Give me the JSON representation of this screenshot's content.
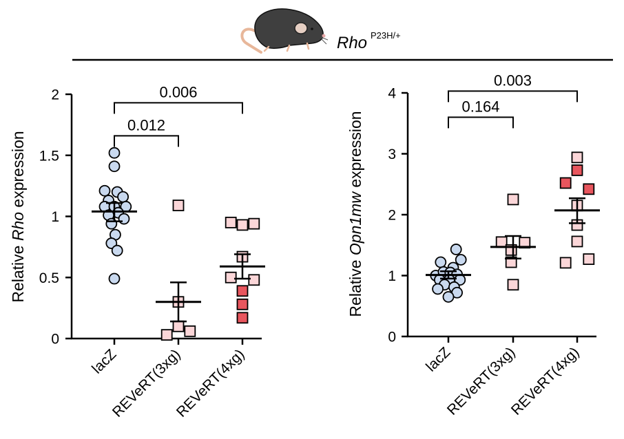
{
  "header": {
    "gene": "Rho",
    "genotype": "P23H/+",
    "mouse_icon": "mouse-icon"
  },
  "colors": {
    "lacz": "#c9d9ef",
    "light_pink": "#fbd6d8",
    "dark_red": "#e8565e",
    "stroke": "#000000"
  },
  "chart_data": [
    {
      "type": "scatter",
      "id": "rho",
      "title": "",
      "ylabel_prefix": "Relative ",
      "ylabel_gene": "Rho",
      "ylabel_suffix": " expression",
      "ylim": [
        0,
        2
      ],
      "yticks": [
        0,
        0.5,
        1,
        1.5,
        2
      ],
      "ytick_labels": [
        "0",
        "0.5",
        "1",
        "1.5",
        "2"
      ],
      "categories": [
        "lacZ",
        "REVeRT(3xg)",
        "REVeRT(4xg)"
      ],
      "groups": [
        {
          "name": "lacZ",
          "marker": "circle",
          "mean": 1.04,
          "sem_low": 0.96,
          "sem_high": 1.11,
          "points": [
            {
              "dx": 0,
              "y": 1.52,
              "c": "lacz"
            },
            {
              "dx": 0,
              "y": 1.41,
              "c": "lacz"
            },
            {
              "dx": -1,
              "y": 1.21,
              "c": "lacz"
            },
            {
              "dx": 0.3,
              "y": 1.2,
              "c": "lacz"
            },
            {
              "dx": 0.9,
              "y": 1.16,
              "c": "lacz"
            },
            {
              "dx": -0.6,
              "y": 1.13,
              "c": "lacz"
            },
            {
              "dx": -1,
              "y": 1.08,
              "c": "lacz"
            },
            {
              "dx": 0,
              "y": 1.08,
              "c": "lacz"
            },
            {
              "dx": 1.2,
              "y": 1.08,
              "c": "lacz"
            },
            {
              "dx": 0.4,
              "y": 1.03,
              "c": "lacz"
            },
            {
              "dx": -0.6,
              "y": 1.01,
              "c": "lacz"
            },
            {
              "dx": 1,
              "y": 0.98,
              "c": "lacz"
            },
            {
              "dx": -0.3,
              "y": 0.94,
              "c": "lacz"
            },
            {
              "dx": 0.1,
              "y": 0.85,
              "c": "lacz"
            },
            {
              "dx": -0.3,
              "y": 0.78,
              "c": "lacz"
            },
            {
              "dx": 0.3,
              "y": 0.72,
              "c": "lacz"
            },
            {
              "dx": 0,
              "y": 0.49,
              "c": "lacz"
            }
          ]
        },
        {
          "name": "REVeRT(3xg)",
          "marker": "square",
          "mean": 0.3,
          "sem_low": 0.14,
          "sem_high": 0.46,
          "points": [
            {
              "dx": 0,
              "y": 1.09,
              "c": "light_pink"
            },
            {
              "dx": 0,
              "y": 0.3,
              "c": "light_pink"
            },
            {
              "dx": 0,
              "y": 0.1,
              "c": "light_pink"
            },
            {
              "dx": -1.2,
              "y": 0.03,
              "c": "light_pink"
            },
            {
              "dx": 1.2,
              "y": 0.06,
              "c": "light_pink"
            }
          ]
        },
        {
          "name": "REVeRT(4xg)",
          "marker": "square",
          "mean": 0.59,
          "sem_low": 0.49,
          "sem_high": 0.69,
          "points": [
            {
              "dx": -1.2,
              "y": 0.95,
              "c": "light_pink"
            },
            {
              "dx": 0,
              "y": 0.93,
              "c": "light_pink"
            },
            {
              "dx": 1.2,
              "y": 0.94,
              "c": "light_pink"
            },
            {
              "dx": 0,
              "y": 0.67,
              "c": "light_pink"
            },
            {
              "dx": -1.2,
              "y": 0.5,
              "c": "light_pink"
            },
            {
              "dx": 1.2,
              "y": 0.48,
              "c": "light_pink"
            },
            {
              "dx": 0,
              "y": 0.39,
              "c": "dark_red"
            },
            {
              "dx": 0,
              "y": 0.28,
              "c": "dark_red"
            },
            {
              "dx": 0,
              "y": 0.17,
              "c": "dark_red"
            }
          ]
        }
      ],
      "comparisons": [
        {
          "from": 0,
          "to": 2,
          "label": "0.006",
          "level": 1.93
        },
        {
          "from": 0,
          "to": 1,
          "label": "0.012",
          "level": 1.66
        }
      ]
    },
    {
      "type": "scatter",
      "id": "opn1mw",
      "title": "",
      "ylabel_prefix": "Relative ",
      "ylabel_gene": "Opn1mw",
      "ylabel_suffix": " expression",
      "ylim": [
        0,
        4
      ],
      "yticks": [
        0,
        1,
        2,
        3,
        4
      ],
      "ytick_labels": [
        "0",
        "1",
        "2",
        "3",
        "4"
      ],
      "categories": [
        "lacZ",
        "REVeRT(3xg)",
        "REVeRT(4xg)"
      ],
      "groups": [
        {
          "name": "lacZ",
          "marker": "circle",
          "mean": 1.01,
          "sem_low": 0.95,
          "sem_high": 1.07,
          "points": [
            {
              "dx": 0.8,
              "y": 1.43,
              "c": "lacz"
            },
            {
              "dx": -0.8,
              "y": 1.22,
              "c": "lacz"
            },
            {
              "dx": 1.3,
              "y": 1.26,
              "c": "lacz"
            },
            {
              "dx": 0.5,
              "y": 1.13,
              "c": "lacz"
            },
            {
              "dx": -1.3,
              "y": 1.0,
              "c": "lacz"
            },
            {
              "dx": -0.5,
              "y": 1.06,
              "c": "lacz"
            },
            {
              "dx": 0.2,
              "y": 1.05,
              "c": "lacz"
            },
            {
              "dx": 0.9,
              "y": 1.02,
              "c": "lacz"
            },
            {
              "dx": -0.9,
              "y": 0.93,
              "c": "lacz"
            },
            {
              "dx": 0.1,
              "y": 0.93,
              "c": "lacz"
            },
            {
              "dx": 1.2,
              "y": 0.93,
              "c": "lacz"
            },
            {
              "dx": -0.4,
              "y": 0.85,
              "c": "lacz"
            },
            {
              "dx": 0.6,
              "y": 0.81,
              "c": "lacz"
            },
            {
              "dx": -1.1,
              "y": 0.78,
              "c": "lacz"
            },
            {
              "dx": 0.9,
              "y": 0.72,
              "c": "lacz"
            },
            {
              "dx": 0,
              "y": 0.65,
              "c": "lacz"
            }
          ]
        },
        {
          "name": "REVeRT(3xg)",
          "marker": "square",
          "mean": 1.47,
          "sem_low": 1.28,
          "sem_high": 1.65,
          "points": [
            {
              "dx": 0,
              "y": 2.25,
              "c": "light_pink"
            },
            {
              "dx": -1.2,
              "y": 1.55,
              "c": "light_pink"
            },
            {
              "dx": 1.2,
              "y": 1.54,
              "c": "light_pink"
            },
            {
              "dx": -0.2,
              "y": 1.42,
              "c": "light_pink"
            },
            {
              "dx": -0.2,
              "y": 1.22,
              "c": "light_pink"
            },
            {
              "dx": 0,
              "y": 0.85,
              "c": "light_pink"
            }
          ]
        },
        {
          "name": "REVeRT(4xg)",
          "marker": "square",
          "mean": 2.07,
          "sem_low": 1.86,
          "sem_high": 2.27,
          "points": [
            {
              "dx": 0,
              "y": 2.94,
              "c": "light_pink"
            },
            {
              "dx": 0,
              "y": 2.73,
              "c": "dark_red"
            },
            {
              "dx": -1.2,
              "y": 2.52,
              "c": "dark_red"
            },
            {
              "dx": 1.2,
              "y": 2.42,
              "c": "dark_red"
            },
            {
              "dx": 0,
              "y": 2.15,
              "c": "light_pink"
            },
            {
              "dx": 0,
              "y": 1.83,
              "c": "light_pink"
            },
            {
              "dx": 0,
              "y": 1.56,
              "c": "light_pink"
            },
            {
              "dx": 1.2,
              "y": 1.27,
              "c": "light_pink"
            },
            {
              "dx": -1.2,
              "y": 1.21,
              "c": "light_pink"
            }
          ]
        }
      ],
      "comparisons": [
        {
          "from": 0,
          "to": 2,
          "label": "0.003",
          "level": 4.03
        },
        {
          "from": 0,
          "to": 1,
          "label": "0.164",
          "level": 3.6
        }
      ]
    }
  ]
}
